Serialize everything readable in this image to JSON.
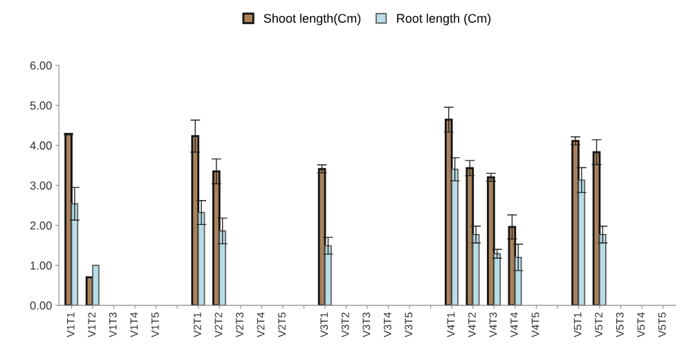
{
  "chart_data": {
    "type": "bar",
    "categories": [
      "V1T1",
      "V1T2",
      "V1T3",
      "V1T4",
      "V1T5",
      null,
      "V2T1",
      "V2T2",
      "V2T3",
      "V2T4",
      "V2T5",
      null,
      "V3T1",
      "V3T2",
      "V3T3",
      "V3T4",
      "V3T5",
      null,
      "V4T1",
      "V4T2",
      "V4T3",
      "V4T4",
      "V4T5",
      null,
      "V5T1",
      "V5T2",
      "V5T3",
      "V5T4",
      "V5T5"
    ],
    "series": [
      {
        "name": "Shoot length(Cm)",
        "color": "#a9825c",
        "values": [
          4.28,
          0.7,
          null,
          null,
          null,
          null,
          4.23,
          3.35,
          null,
          null,
          null,
          null,
          3.41,
          null,
          null,
          null,
          null,
          null,
          4.64,
          3.43,
          3.2,
          1.96,
          null,
          null,
          4.11,
          3.83,
          null,
          null,
          null
        ],
        "errors": [
          0.02,
          null,
          null,
          null,
          null,
          null,
          0.4,
          0.31,
          null,
          null,
          null,
          null,
          0.1,
          null,
          null,
          null,
          null,
          null,
          0.31,
          0.19,
          0.1,
          0.3,
          null,
          null,
          0.1,
          0.31,
          null,
          null,
          null
        ]
      },
      {
        "name": "Root length (Cm)",
        "color": "#b7dde8",
        "values": [
          2.54,
          1.0,
          null,
          null,
          null,
          null,
          2.32,
          1.86,
          null,
          null,
          null,
          null,
          1.49,
          null,
          null,
          null,
          null,
          null,
          3.4,
          1.77,
          1.29,
          1.2,
          null,
          null,
          3.13,
          1.77,
          null,
          null,
          null
        ],
        "errors": [
          0.41,
          null,
          null,
          null,
          null,
          null,
          0.3,
          0.32,
          null,
          null,
          null,
          null,
          0.21,
          null,
          null,
          null,
          null,
          null,
          0.29,
          0.21,
          0.11,
          0.33,
          null,
          null,
          0.31,
          0.21,
          null,
          null,
          null
        ]
      }
    ],
    "ylim": [
      0,
      6
    ],
    "yticks": [
      {
        "value": 0,
        "label": "0.00"
      },
      {
        "value": 1,
        "label": "1.00"
      },
      {
        "value": 2,
        "label": "2.00"
      },
      {
        "value": 3,
        "label": "3.00"
      },
      {
        "value": 4,
        "label": "4.00"
      },
      {
        "value": 5,
        "label": "5.00"
      },
      {
        "value": 6,
        "label": "6.00"
      }
    ],
    "grid": false,
    "legend": "top"
  }
}
